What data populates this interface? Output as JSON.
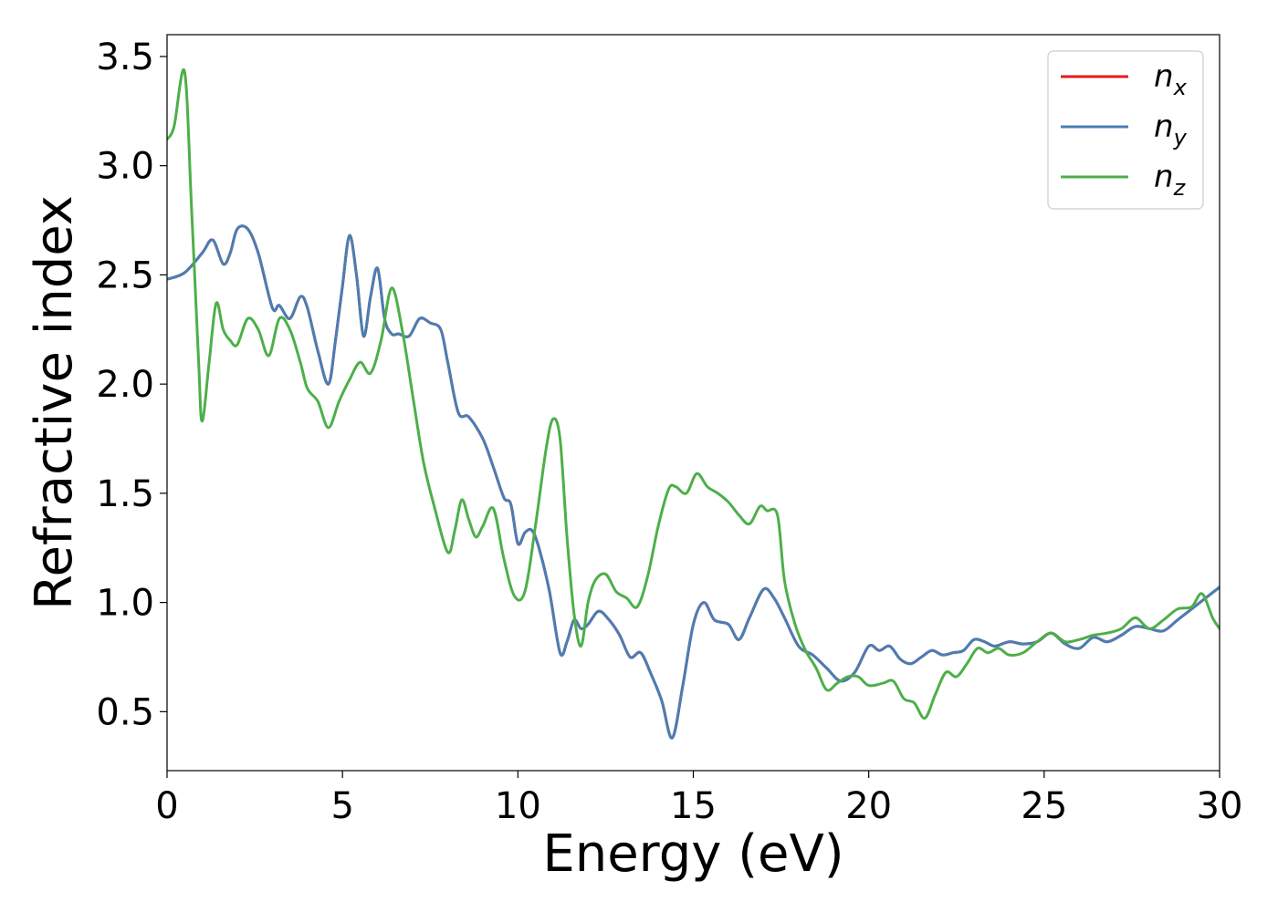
{
  "chart_data": {
    "type": "line",
    "xlabel": "Energy (eV)",
    "ylabel": "Refractive index",
    "xlim": [
      0,
      30
    ],
    "ylim": [
      0.23,
      3.6
    ],
    "xticks": [
      "0",
      "5",
      "10",
      "15",
      "20",
      "25",
      "30"
    ],
    "yticks": [
      "0.5",
      "1.0",
      "1.5",
      "2.0",
      "2.5",
      "3.0",
      "3.5"
    ],
    "grid": false,
    "legend_position": "top-right",
    "series": [
      {
        "name": "n",
        "subscript": "x",
        "color": "#e41a1c",
        "x": [
          0,
          0.5,
          1.0,
          1.3,
          1.6,
          1.8,
          2.0,
          2.3,
          2.6,
          3.0,
          3.2,
          3.5,
          3.8,
          4.0,
          4.3,
          4.6,
          4.8,
          5.0,
          5.2,
          5.4,
          5.6,
          5.8,
          6.0,
          6.2,
          6.4,
          6.6,
          6.9,
          7.2,
          7.5,
          7.8,
          8.0,
          8.3,
          8.6,
          9.0,
          9.3,
          9.6,
          9.8,
          10.0,
          10.2,
          10.4,
          10.6,
          10.9,
          11.2,
          11.4,
          11.6,
          11.8,
          12.0,
          12.3,
          12.6,
          12.9,
          13.2,
          13.5,
          13.8,
          14.1,
          14.4,
          14.7,
          15.0,
          15.3,
          15.6,
          16.0,
          16.3,
          16.6,
          17.0,
          17.3,
          17.6,
          18.0,
          18.4,
          18.8,
          19.2,
          19.6,
          20.0,
          20.3,
          20.6,
          20.9,
          21.2,
          21.5,
          21.8,
          22.1,
          22.4,
          22.7,
          23.0,
          23.3,
          23.6,
          24.0,
          24.4,
          24.8,
          25.2,
          25.6,
          26.0,
          26.4,
          26.8,
          27.2,
          27.6,
          28.0,
          28.4,
          28.8,
          29.2,
          29.6,
          30.0
        ],
        "y": [
          2.48,
          2.51,
          2.6,
          2.66,
          2.55,
          2.6,
          2.71,
          2.71,
          2.6,
          2.35,
          2.36,
          2.3,
          2.4,
          2.35,
          2.15,
          2.0,
          2.2,
          2.45,
          2.68,
          2.5,
          2.22,
          2.4,
          2.53,
          2.3,
          2.23,
          2.23,
          2.22,
          2.3,
          2.28,
          2.25,
          2.1,
          1.87,
          1.85,
          1.75,
          1.62,
          1.48,
          1.45,
          1.27,
          1.32,
          1.33,
          1.25,
          1.05,
          0.77,
          0.82,
          0.92,
          0.88,
          0.9,
          0.96,
          0.92,
          0.85,
          0.75,
          0.77,
          0.67,
          0.55,
          0.38,
          0.62,
          0.9,
          1.0,
          0.92,
          0.9,
          0.83,
          0.93,
          1.06,
          1.02,
          0.93,
          0.8,
          0.76,
          0.7,
          0.64,
          0.68,
          0.8,
          0.78,
          0.8,
          0.74,
          0.72,
          0.75,
          0.78,
          0.76,
          0.77,
          0.78,
          0.83,
          0.82,
          0.8,
          0.82,
          0.81,
          0.82,
          0.86,
          0.81,
          0.79,
          0.84,
          0.82,
          0.85,
          0.89,
          0.88,
          0.87,
          0.92,
          0.97,
          1.02,
          1.07
        ]
      },
      {
        "name": "n",
        "subscript": "y",
        "color": "#4a7eb3",
        "x": [
          0,
          0.5,
          1.0,
          1.3,
          1.6,
          1.8,
          2.0,
          2.3,
          2.6,
          3.0,
          3.2,
          3.5,
          3.8,
          4.0,
          4.3,
          4.6,
          4.8,
          5.0,
          5.2,
          5.4,
          5.6,
          5.8,
          6.0,
          6.2,
          6.4,
          6.6,
          6.9,
          7.2,
          7.5,
          7.8,
          8.0,
          8.3,
          8.6,
          9.0,
          9.3,
          9.6,
          9.8,
          10.0,
          10.2,
          10.4,
          10.6,
          10.9,
          11.2,
          11.4,
          11.6,
          11.8,
          12.0,
          12.3,
          12.6,
          12.9,
          13.2,
          13.5,
          13.8,
          14.1,
          14.4,
          14.7,
          15.0,
          15.3,
          15.6,
          16.0,
          16.3,
          16.6,
          17.0,
          17.3,
          17.6,
          18.0,
          18.4,
          18.8,
          19.2,
          19.6,
          20.0,
          20.3,
          20.6,
          20.9,
          21.2,
          21.5,
          21.8,
          22.1,
          22.4,
          22.7,
          23.0,
          23.3,
          23.6,
          24.0,
          24.4,
          24.8,
          25.2,
          25.6,
          26.0,
          26.4,
          26.8,
          27.2,
          27.6,
          28.0,
          28.4,
          28.8,
          29.2,
          29.6,
          30.0
        ],
        "y": [
          2.48,
          2.51,
          2.6,
          2.66,
          2.55,
          2.6,
          2.71,
          2.71,
          2.6,
          2.35,
          2.36,
          2.3,
          2.4,
          2.35,
          2.15,
          2.0,
          2.2,
          2.45,
          2.68,
          2.5,
          2.22,
          2.4,
          2.53,
          2.3,
          2.23,
          2.23,
          2.22,
          2.3,
          2.28,
          2.25,
          2.1,
          1.87,
          1.85,
          1.75,
          1.62,
          1.48,
          1.45,
          1.27,
          1.32,
          1.33,
          1.25,
          1.05,
          0.77,
          0.82,
          0.92,
          0.88,
          0.9,
          0.96,
          0.92,
          0.85,
          0.75,
          0.77,
          0.67,
          0.55,
          0.38,
          0.62,
          0.9,
          1.0,
          0.92,
          0.9,
          0.83,
          0.93,
          1.06,
          1.02,
          0.93,
          0.8,
          0.76,
          0.7,
          0.64,
          0.68,
          0.8,
          0.78,
          0.8,
          0.74,
          0.72,
          0.75,
          0.78,
          0.76,
          0.77,
          0.78,
          0.83,
          0.82,
          0.8,
          0.82,
          0.81,
          0.82,
          0.86,
          0.81,
          0.79,
          0.84,
          0.82,
          0.85,
          0.89,
          0.88,
          0.87,
          0.92,
          0.97,
          1.02,
          1.07
        ]
      },
      {
        "name": "n",
        "subscript": "z",
        "color": "#4daf4a",
        "x": [
          0,
          0.2,
          0.5,
          0.7,
          0.9,
          1.0,
          1.2,
          1.4,
          1.6,
          1.8,
          2.0,
          2.3,
          2.6,
          2.9,
          3.2,
          3.5,
          3.8,
          4.0,
          4.3,
          4.6,
          4.9,
          5.2,
          5.5,
          5.8,
          6.1,
          6.4,
          6.7,
          7.0,
          7.3,
          7.6,
          8.0,
          8.2,
          8.4,
          8.6,
          8.8,
          9.0,
          9.3,
          9.6,
          9.9,
          10.2,
          10.5,
          10.8,
          11.0,
          11.2,
          11.4,
          11.6,
          11.8,
          12.0,
          12.2,
          12.5,
          12.8,
          13.1,
          13.4,
          13.7,
          14.0,
          14.3,
          14.5,
          14.8,
          15.1,
          15.4,
          15.7,
          16.0,
          16.3,
          16.6,
          16.9,
          17.1,
          17.4,
          17.6,
          17.9,
          18.2,
          18.5,
          18.8,
          19.1,
          19.4,
          19.7,
          20.0,
          20.4,
          20.7,
          21.0,
          21.3,
          21.6,
          21.9,
          22.2,
          22.5,
          22.8,
          23.1,
          23.4,
          23.7,
          24.0,
          24.4,
          24.8,
          25.2,
          25.6,
          26.0,
          26.4,
          26.8,
          27.2,
          27.6,
          28.0,
          28.4,
          28.8,
          29.2,
          29.5,
          29.8,
          30.0
        ],
        "y": [
          3.12,
          3.18,
          3.43,
          2.8,
          2.1,
          1.83,
          2.1,
          2.37,
          2.25,
          2.2,
          2.18,
          2.3,
          2.25,
          2.13,
          2.3,
          2.25,
          2.1,
          1.98,
          1.92,
          1.8,
          1.92,
          2.02,
          2.1,
          2.05,
          2.2,
          2.44,
          2.25,
          1.95,
          1.65,
          1.45,
          1.23,
          1.33,
          1.47,
          1.38,
          1.3,
          1.35,
          1.43,
          1.2,
          1.03,
          1.05,
          1.35,
          1.7,
          1.84,
          1.75,
          1.3,
          0.95,
          0.8,
          1.0,
          1.1,
          1.13,
          1.05,
          1.02,
          0.98,
          1.12,
          1.35,
          1.52,
          1.53,
          1.5,
          1.59,
          1.53,
          1.5,
          1.46,
          1.4,
          1.36,
          1.44,
          1.42,
          1.4,
          1.1,
          0.9,
          0.78,
          0.7,
          0.6,
          0.63,
          0.66,
          0.66,
          0.62,
          0.63,
          0.64,
          0.56,
          0.54,
          0.47,
          0.58,
          0.68,
          0.66,
          0.72,
          0.79,
          0.77,
          0.79,
          0.76,
          0.77,
          0.82,
          0.86,
          0.82,
          0.83,
          0.85,
          0.86,
          0.88,
          0.93,
          0.88,
          0.92,
          0.97,
          0.98,
          1.04,
          0.93,
          0.88
        ]
      }
    ]
  }
}
